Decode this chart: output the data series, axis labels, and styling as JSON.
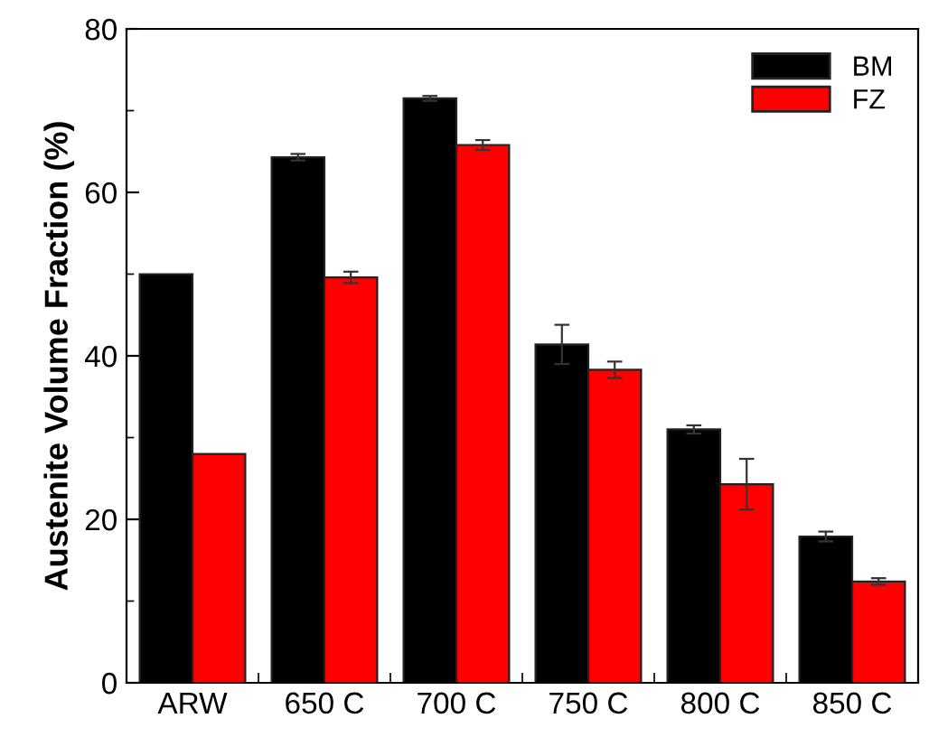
{
  "chart_data": {
    "type": "bar",
    "ylabel": "Austenite Volume Fraction (%)",
    "categories": [
      "ARW",
      "650 C",
      "700 C",
      "750 C",
      "800 C",
      "850 C"
    ],
    "series": [
      {
        "name": "BM",
        "color": "#000000",
        "values": [
          50,
          64.3,
          71.5,
          41.4,
          31.0,
          17.9
        ],
        "errors": [
          null,
          0.4,
          0.3,
          2.4,
          0.5,
          0.6
        ]
      },
      {
        "name": "FZ",
        "color": "#ff0000",
        "values": [
          28,
          49.6,
          65.8,
          38.3,
          24.3,
          12.4
        ],
        "errors": [
          null,
          0.7,
          0.6,
          1.0,
          3.1,
          0.4
        ]
      }
    ],
    "ylim": [
      0,
      80
    ],
    "yticks": [
      0,
      {
        "value": 10,
        "label": null
      },
      20,
      {
        "value": 30,
        "label": null
      },
      40,
      {
        "value": 50,
        "label": null
      },
      60,
      {
        "value": 70,
        "label": null
      },
      80
    ],
    "grid": false,
    "legend": "top right"
  }
}
